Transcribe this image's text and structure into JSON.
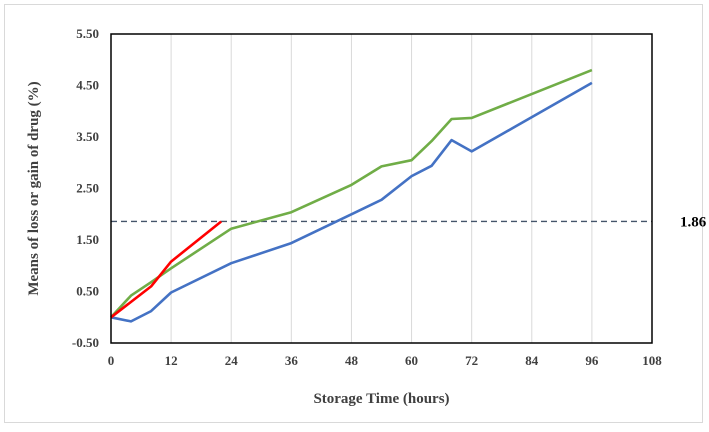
{
  "chart_data": {
    "type": "line",
    "title": "",
    "xlabel": "Storage Time (hours)",
    "ylabel": "Means of loss or gain of drug (%)",
    "xlim": [
      0,
      108
    ],
    "ylim": [
      -0.5,
      5.5
    ],
    "xticks": [
      0,
      12,
      24,
      36,
      48,
      60,
      72,
      84,
      96,
      108
    ],
    "yticks": [
      -0.5,
      0.5,
      1.5,
      2.5,
      3.5,
      4.5,
      5.5
    ],
    "xtick_labels": [
      "0",
      "12",
      "24",
      "36",
      "48",
      "60",
      "72",
      "84",
      "96",
      "108"
    ],
    "ytick_labels": [
      "-0.50",
      "0.50",
      "1.50",
      "2.50",
      "3.50",
      "4.50",
      "5.50"
    ],
    "grid": "vertical",
    "legend": "none",
    "reference_line": {
      "y": 1.86,
      "label": "1.86",
      "style": "dashed",
      "color": "#44546a"
    },
    "series": [
      {
        "color": "#4472c4",
        "x": [
          0,
          4,
          8,
          12,
          24,
          36,
          48,
          54,
          60,
          64,
          68,
          72,
          96
        ],
        "y": [
          0,
          -0.08,
          0.12,
          0.48,
          1.05,
          1.44,
          2.0,
          2.28,
          2.74,
          2.94,
          3.44,
          3.22,
          4.55
        ]
      },
      {
        "color": "#70ad47",
        "x": [
          0,
          4,
          8,
          12,
          24,
          36,
          48,
          54,
          60,
          64,
          68,
          72,
          96
        ],
        "y": [
          0,
          0.42,
          0.68,
          0.95,
          1.72,
          2.04,
          2.57,
          2.93,
          3.05,
          3.42,
          3.85,
          3.87,
          4.8
        ]
      },
      {
        "color": "#ff0000",
        "x": [
          0,
          8,
          12,
          22
        ],
        "y": [
          0,
          0.6,
          1.08,
          1.86
        ]
      }
    ]
  }
}
